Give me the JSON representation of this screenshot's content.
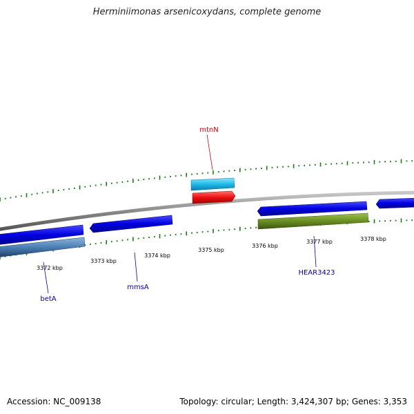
{
  "title": "Herminiimonas arsenicoxydans, complete genome",
  "footer": {
    "accession": "Accession: NC_009138",
    "summary": "Topology: circular; Length: 3,424,307 bp; Genes: 3,353"
  },
  "scale": {
    "ticks_kbp": [
      3372,
      3373,
      3374,
      3375,
      3376,
      3377,
      3378
    ],
    "tick_labels": [
      "3372 kbp",
      "3373 kbp",
      "3374 kbp",
      "3375 kbp",
      "3376 kbp",
      "3377 kbp",
      "3378 kbp"
    ]
  },
  "colors": {
    "backbone": "#888888",
    "tick": "#1a7a1a",
    "forward_gene": "#0000e0",
    "reverse_gene": "#4a7fb5",
    "trna": "#20b8e8",
    "rrna": "#ee1111",
    "pseudo": "#6b8e23",
    "label_blue": "#0000aa",
    "label_red": "#cc0000"
  },
  "labels": [
    {
      "text": "mtnN",
      "color": "red"
    },
    {
      "text": "betA",
      "color": "blue"
    },
    {
      "text": "mmsA",
      "color": "blue"
    },
    {
      "text": "HEAR3423",
      "color": "blue"
    }
  ]
}
